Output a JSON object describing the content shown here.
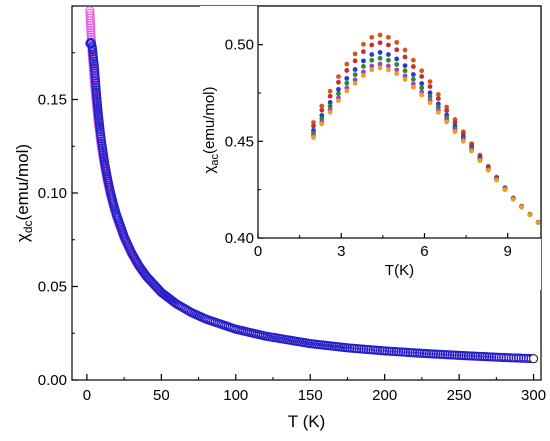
{
  "chart_data": [
    {
      "type": "scatter",
      "title": "",
      "xlabel": "T (K)",
      "ylabel": {
        "main": "χ",
        "sub": "dc",
        "rest": "(emu/mol)"
      },
      "xlim": [
        -10,
        305
      ],
      "ylim": [
        0,
        0.2
      ],
      "xticks": [
        "0",
        "50",
        "100",
        "150",
        "200",
        "250",
        "300"
      ],
      "xtick_values": [
        0,
        50,
        100,
        150,
        200,
        250,
        300
      ],
      "yticks": [
        "0.00",
        "0.05",
        "0.10",
        "0.15"
      ],
      "ytick_values": [
        0.0,
        0.05,
        0.1,
        0.15
      ],
      "grid": false,
      "legend": null,
      "series": [
        {
          "color": "#e060e0",
          "marker": "open-circle",
          "x": [
            2,
            2.5,
            3,
            3.5,
            4,
            5,
            6,
            7,
            8,
            9,
            10,
            12,
            14,
            16,
            18,
            20,
            25,
            30,
            35,
            40,
            50,
            60,
            70,
            80,
            100,
            120,
            150,
            175,
            200,
            225,
            250,
            275,
            300
          ],
          "y": [
            0.1975,
            0.1895,
            0.182,
            0.1755,
            0.1695,
            0.1595,
            0.1505,
            0.1425,
            0.1355,
            0.129,
            0.1235,
            0.1135,
            0.1055,
            0.0985,
            0.0925,
            0.087,
            0.076,
            0.0675,
            0.0607,
            0.0552,
            0.0467,
            0.0407,
            0.0361,
            0.0325,
            0.0271,
            0.0234,
            0.0194,
            0.0172,
            0.0155,
            0.0142,
            0.0131,
            0.0122,
            0.0114
          ]
        },
        {
          "color": "#2020c8",
          "marker": "open-circle",
          "x": [
            2,
            2.5,
            3,
            3.5,
            4,
            4.5,
            5,
            6,
            7,
            8,
            9,
            10,
            12,
            14,
            16,
            18,
            20,
            25,
            30,
            35,
            40,
            50,
            60,
            70,
            80,
            100,
            120,
            150,
            175,
            200,
            225,
            250,
            275,
            300
          ],
          "y": [
            0.18,
            0.1805,
            0.18,
            0.1785,
            0.1755,
            0.1715,
            0.168,
            0.1575,
            0.1478,
            0.1398,
            0.1328,
            0.1265,
            0.1158,
            0.1072,
            0.0999,
            0.0937,
            0.0882,
            0.0768,
            0.0681,
            0.0611,
            0.0555,
            0.0469,
            0.0408,
            0.0362,
            0.0326,
            0.0272,
            0.0235,
            0.0195,
            0.0172,
            0.0156,
            0.0143,
            0.0132,
            0.0122,
            0.0114
          ]
        }
      ]
    },
    {
      "type": "scatter",
      "title": "",
      "xlabel": "T(K)",
      "ylabel": {
        "main": "χ",
        "sub": "ac",
        "rest": "(emu/mol)"
      },
      "xlim": [
        0,
        10.2
      ],
      "ylim": [
        0.4,
        0.52
      ],
      "xticks": [
        "0",
        "3",
        "6",
        "9"
      ],
      "xtick_values": [
        0,
        3,
        6,
        9
      ],
      "yticks": [
        "0.40",
        "0.45",
        "0.50"
      ],
      "ytick_values": [
        0.4,
        0.45,
        0.5
      ],
      "grid": false,
      "legend": null,
      "series": [
        {
          "color": "#d4561a",
          "peak": 0.505,
          "offset": 0.017
        },
        {
          "color": "#c03030",
          "peak": 0.501,
          "offset": 0.013
        },
        {
          "color": "#2a3ac8",
          "peak": 0.496,
          "offset": 0.008
        },
        {
          "color": "#2a8a2a",
          "peak": 0.493,
          "offset": 0.005
        },
        {
          "color": "#a040c0",
          "peak": 0.49,
          "offset": 0.002
        },
        {
          "color": "#e8a020",
          "peak": 0.488,
          "offset": 0.0
        }
      ],
      "x": [
        2.0,
        2.3,
        2.6,
        2.9,
        3.2,
        3.5,
        3.8,
        4.1,
        4.4,
        4.7,
        5.0,
        5.3,
        5.6,
        5.9,
        6.2,
        6.5,
        6.8,
        7.1,
        7.4,
        7.7,
        8.0,
        8.3,
        8.6,
        8.9,
        9.2,
        9.5,
        9.8,
        10.1
      ],
      "base_y": [
        0.452,
        0.459,
        0.465,
        0.471,
        0.476,
        0.48,
        0.484,
        0.487,
        0.488,
        0.487,
        0.485,
        0.482,
        0.478,
        0.474,
        0.47,
        0.465,
        0.46,
        0.455,
        0.45,
        0.445,
        0.44,
        0.435,
        0.43,
        0.425,
        0.42,
        0.416,
        0.412,
        0.408
      ]
    }
  ]
}
